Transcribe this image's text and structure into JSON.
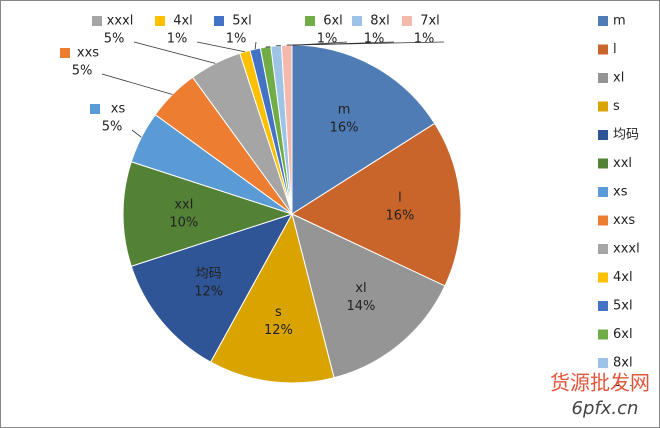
{
  "chart_data": {
    "type": "pie",
    "categories": [
      "m",
      "l",
      "xl",
      "s",
      "均码",
      "xxl",
      "xs",
      "xxs",
      "xxxl",
      "4xl",
      "5xl",
      "6xl",
      "8xl",
      "7xl"
    ],
    "values": [
      16,
      16,
      14,
      12,
      12,
      10,
      5,
      5,
      5,
      1,
      1,
      1,
      1,
      1
    ],
    "value_labels": [
      "16%",
      "16%",
      "14%",
      "12%",
      "12%",
      "10%",
      "5%",
      "5%",
      "5%",
      "1%",
      "1%",
      "1%",
      "1%",
      "1%"
    ],
    "colors": [
      "#4f7cb4",
      "#c9652b",
      "#959595",
      "#d9a300",
      "#2f5597",
      "#538135",
      "#5b9bd5",
      "#ed7d31",
      "#a5a5a5",
      "#ffc000",
      "#4472c4",
      "#70ad47",
      "#9dc3e6",
      "#f4b9ad"
    ],
    "legend": "right",
    "watermark": [
      "货源批发网",
      "6pfx.cn"
    ]
  }
}
